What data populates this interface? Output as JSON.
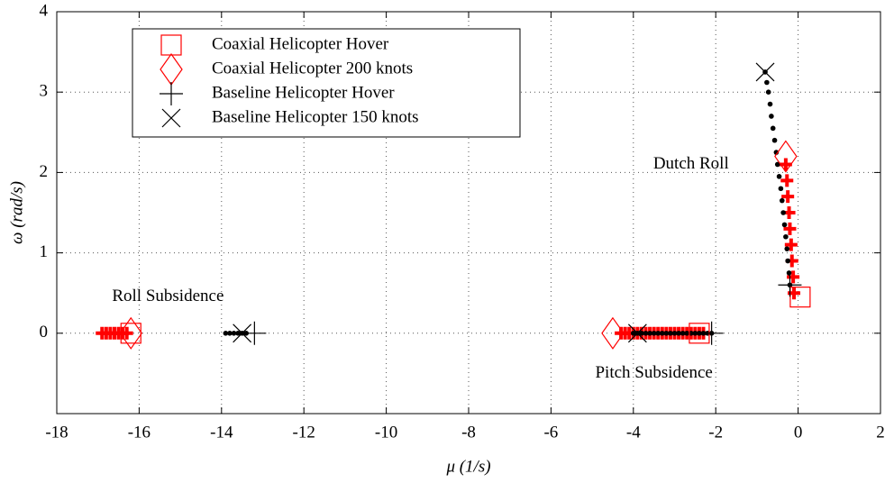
{
  "chart_data": {
    "type": "scatter",
    "xlabel": "μ (1/s)",
    "ylabel": "ω (rad/s)",
    "xlim": [
      -18,
      2
    ],
    "ylim": [
      -1,
      4
    ],
    "xticks": [
      -18,
      -16,
      -14,
      -12,
      -10,
      -8,
      -6,
      -4,
      -2,
      0,
      2
    ],
    "yticks": [
      0,
      1,
      2,
      3,
      4
    ],
    "grid": true,
    "legend": "upper left",
    "annotations": [
      {
        "text": "Dutch Roll",
        "x": -2.6,
        "y": 2.1
      },
      {
        "text": "Roll Subsidence",
        "x": -15.3,
        "y": 0.45
      },
      {
        "text": "Pitch Subsidence",
        "x": -3.5,
        "y": -0.5
      }
    ],
    "series": [
      {
        "color": "#ff0000",
        "marker": "plus-bold",
        "x": [
          -16.9,
          -16.8,
          -16.7,
          -16.6,
          -16.5,
          -16.4,
          -16.3,
          -4.3,
          -4.2,
          -4.1,
          -4.0,
          -3.9,
          -3.8,
          -3.7,
          -3.6,
          -3.5,
          -3.4,
          -3.3,
          -3.2,
          -3.1,
          -3.0,
          -2.9,
          -2.8,
          -2.7,
          -2.6,
          -2.5,
          -2.4,
          -2.3,
          -0.1,
          -0.12,
          -0.15,
          -0.17,
          -0.2,
          -0.22,
          -0.25,
          -0.27,
          -0.3
        ],
        "values": [
          0,
          0,
          0,
          0,
          0,
          0,
          0,
          0,
          0,
          0,
          0,
          0,
          0,
          0,
          0,
          0,
          0,
          0,
          0,
          0,
          0,
          0,
          0,
          0,
          0,
          0,
          0,
          0,
          0.5,
          0.7,
          0.9,
          1.1,
          1.3,
          1.5,
          1.7,
          1.9,
          2.1
        ]
      },
      {
        "color": "#000000",
        "marker": "dot",
        "x": [
          -13.9,
          -13.8,
          -13.7,
          -13.6,
          -13.5,
          -13.4,
          -4.0,
          -3.9,
          -3.8,
          -3.7,
          -3.6,
          -3.5,
          -3.4,
          -3.3,
          -3.2,
          -3.1,
          -3.0,
          -2.9,
          -2.8,
          -2.7,
          -2.6,
          -2.5,
          -2.4,
          -2.3,
          -2.2,
          -2.1,
          -0.2,
          -0.22,
          -0.25,
          -0.27,
          -0.3,
          -0.33,
          -0.36,
          -0.39,
          -0.42,
          -0.46,
          -0.5,
          -0.53,
          -0.57,
          -0.61,
          -0.65,
          -0.68,
          -0.72,
          -0.76,
          -0.8
        ],
        "values": [
          0,
          0,
          0,
          0,
          0,
          0,
          0,
          0,
          0,
          0,
          0,
          0,
          0,
          0,
          0,
          0,
          0,
          0,
          0,
          0,
          0,
          0,
          0,
          0,
          0,
          0,
          0.6,
          0.75,
          0.9,
          1.05,
          1.2,
          1.35,
          1.5,
          1.65,
          1.8,
          1.95,
          2.1,
          2.25,
          2.4,
          2.55,
          2.7,
          2.85,
          3.0,
          3.12,
          3.25
        ]
      },
      {
        "name": "Coaxial Helicopter Hover",
        "color": "#ff0000",
        "marker": "square",
        "x": [
          -16.2,
          -2.4,
          0.05
        ],
        "values": [
          0,
          0,
          0.45
        ]
      },
      {
        "name": "Coaxial Helicopter 200 knots",
        "color": "#ff0000",
        "marker": "diamond",
        "x": [
          -16.2,
          -4.5,
          -0.3
        ],
        "values": [
          0,
          0,
          2.2
        ]
      },
      {
        "name": "Baseline Helicopter Hover",
        "color": "#000000",
        "marker": "plus",
        "x": [
          -13.2,
          -2.1,
          -0.2
        ],
        "values": [
          0,
          0,
          0.6
        ]
      },
      {
        "name": "Baseline Helicopter 150 knots",
        "color": "#000000",
        "marker": "cross",
        "x": [
          -13.5,
          -3.9,
          -0.8
        ],
        "values": [
          0,
          0,
          3.25
        ]
      }
    ]
  }
}
